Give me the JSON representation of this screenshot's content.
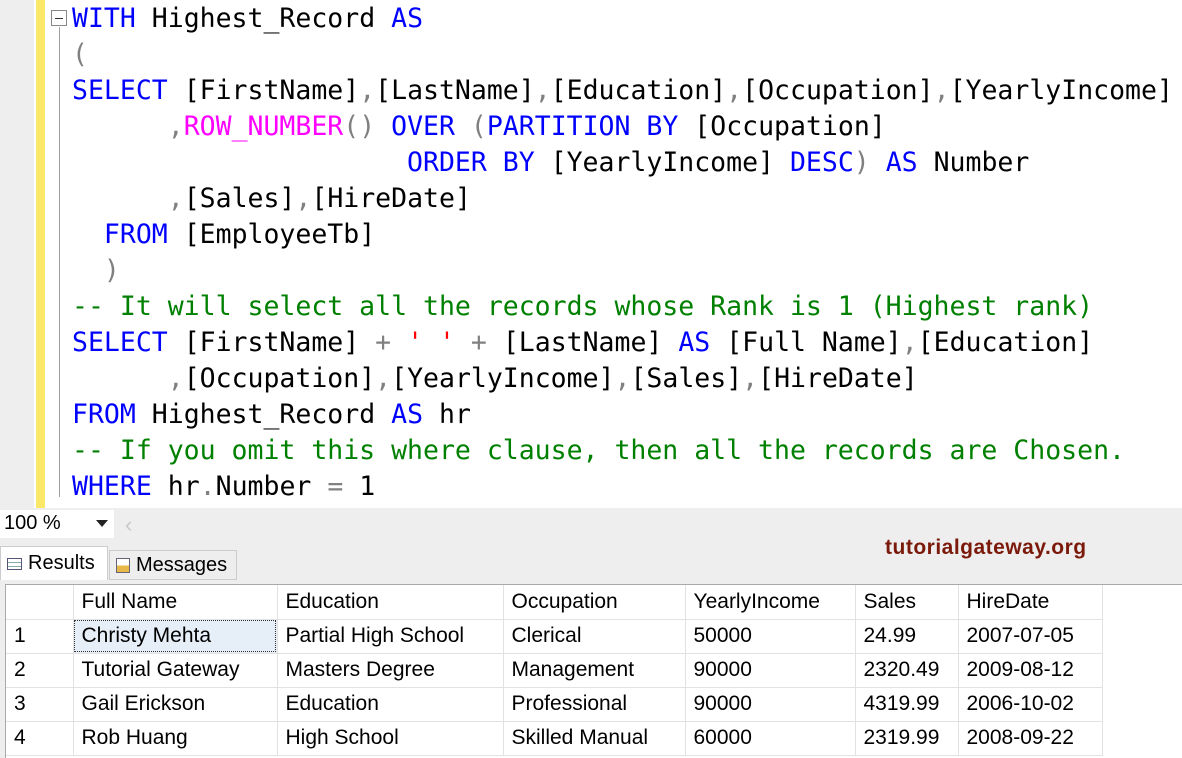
{
  "editor": {
    "lines": [
      [
        [
          "WITH",
          "kw"
        ],
        [
          " Highest_Record ",
          "tx"
        ],
        [
          "AS",
          "kw"
        ]
      ],
      [
        [
          "(",
          "op"
        ]
      ],
      [
        [
          "SELECT",
          "kw"
        ],
        [
          " [FirstName]",
          "tx"
        ],
        [
          ",",
          "op"
        ],
        [
          "[LastName]",
          "tx"
        ],
        [
          ",",
          "op"
        ],
        [
          "[Education]",
          "tx"
        ],
        [
          ",",
          "op"
        ],
        [
          "[Occupation]",
          "tx"
        ],
        [
          ",",
          "op"
        ],
        [
          "[YearlyIncome]",
          "tx"
        ]
      ],
      [
        [
          "      ",
          "tx"
        ],
        [
          ",",
          "op"
        ],
        [
          "ROW_NUMBER",
          "fn"
        ],
        [
          "()",
          "op"
        ],
        [
          " OVER ",
          "kw"
        ],
        [
          "(",
          "op"
        ],
        [
          "PARTITION BY",
          "kw"
        ],
        [
          " [Occupation]",
          "tx"
        ]
      ],
      [
        [
          "                     ",
          "tx"
        ],
        [
          "ORDER BY",
          "kw"
        ],
        [
          " [YearlyIncome] ",
          "tx"
        ],
        [
          "DESC",
          "kw"
        ],
        [
          ")",
          "op"
        ],
        [
          " AS",
          "kw"
        ],
        [
          " Number",
          "tx"
        ]
      ],
      [
        [
          "      ",
          "tx"
        ],
        [
          ",",
          "op"
        ],
        [
          "[Sales]",
          "tx"
        ],
        [
          ",",
          "op"
        ],
        [
          "[HireDate]",
          "tx"
        ]
      ],
      [
        [
          "  ",
          "tx"
        ],
        [
          "FROM",
          "kw"
        ],
        [
          " [EmployeeTb]",
          "tx"
        ]
      ],
      [
        [
          "  ",
          "tx"
        ],
        [
          ")",
          "op"
        ]
      ],
      [
        [
          "-- It will select all the records whose Rank is 1 (Highest rank)",
          "cm"
        ]
      ],
      [
        [
          "SELECT",
          "kw"
        ],
        [
          " [FirstName] ",
          "tx"
        ],
        [
          "+",
          "op"
        ],
        [
          " ' '",
          "st"
        ],
        [
          " + ",
          "op"
        ],
        [
          "[LastName] ",
          "tx"
        ],
        [
          "AS",
          "kw"
        ],
        [
          " [Full Name]",
          "tx"
        ],
        [
          ",",
          "op"
        ],
        [
          "[Education]",
          "tx"
        ]
      ],
      [
        [
          "      ",
          "tx"
        ],
        [
          ",",
          "op"
        ],
        [
          "[Occupation]",
          "tx"
        ],
        [
          ",",
          "op"
        ],
        [
          "[YearlyIncome]",
          "tx"
        ],
        [
          ",",
          "op"
        ],
        [
          "[Sales]",
          "tx"
        ],
        [
          ",",
          "op"
        ],
        [
          "[HireDate]",
          "tx"
        ]
      ],
      [
        [
          "FROM",
          "kw"
        ],
        [
          " Highest_Record ",
          "tx"
        ],
        [
          "AS",
          "kw"
        ],
        [
          " hr",
          "tx"
        ]
      ],
      [
        [
          "-- If you omit this where clause, then all the records are Chosen.",
          "cm"
        ]
      ],
      [
        [
          "WHERE",
          "kw"
        ],
        [
          " hr",
          "tx"
        ],
        [
          ".",
          "op"
        ],
        [
          "Number ",
          "tx"
        ],
        [
          "=",
          "op"
        ],
        [
          " 1",
          "tx"
        ]
      ]
    ]
  },
  "zoom": {
    "value": "100 %"
  },
  "tabs": {
    "results": "Results",
    "messages": "Messages"
  },
  "brand": "tutorialgateway.org",
  "grid": {
    "columns": [
      "",
      "Full Name",
      "Education",
      "Occupation",
      "YearlyIncome",
      "Sales",
      "HireDate"
    ],
    "rows": [
      [
        "1",
        "Christy Mehta",
        "Partial High School",
        "Clerical",
        "50000",
        "24.99",
        "2007-07-05"
      ],
      [
        "2",
        "Tutorial Gateway",
        "Masters Degree",
        "Management",
        "90000",
        "2320.49",
        "2009-08-12"
      ],
      [
        "3",
        "Gail Erickson",
        "Education",
        "Professional",
        "90000",
        "4319.99",
        "2006-10-02"
      ],
      [
        "4",
        "Rob Huang",
        "High School",
        "Skilled Manual",
        "60000",
        "2319.99",
        "2008-09-22"
      ]
    ]
  }
}
